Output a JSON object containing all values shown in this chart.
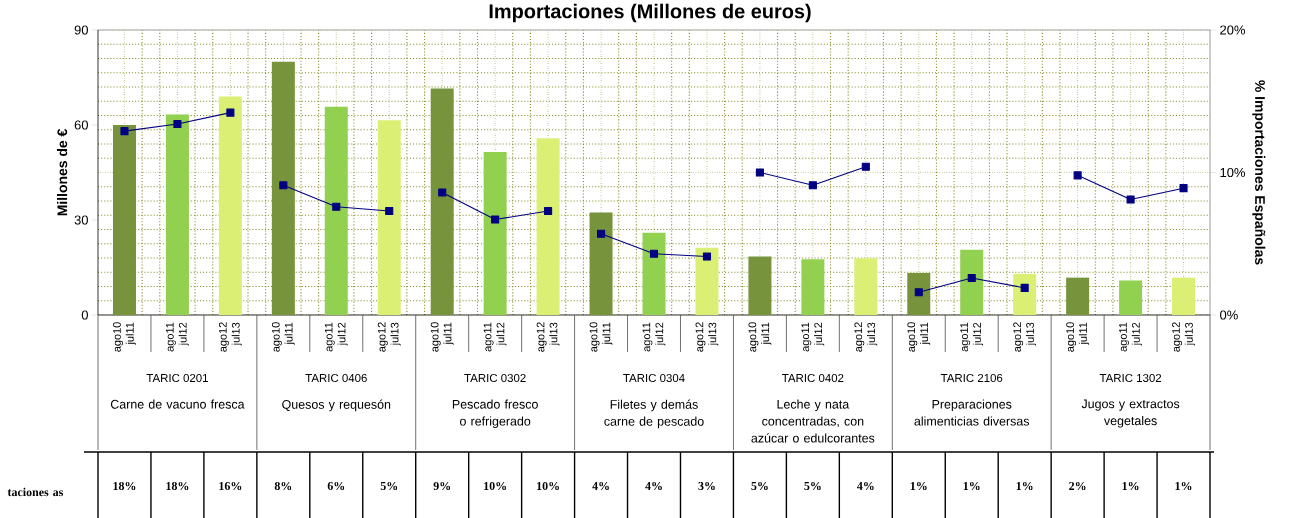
{
  "chart_data": {
    "type": "bar",
    "title": "Importaciones (Millones de euros)",
    "ylabel": "Millones de €",
    "y2label": "% Importaciones Españolas",
    "categories": [
      "ago10 jul11",
      "ago11 jul12",
      "ago12 jul13",
      "ago10 jul11",
      "ago11 jul12",
      "ago12 jul13",
      "ago10 jul11",
      "ago11 jul12",
      "ago12 jul13",
      "ago10 jul11",
      "ago11 jul12",
      "ago12 jul13",
      "ago10 jul11",
      "ago11 jul12",
      "ago12 jul13",
      "ago10 jul11",
      "ago11 jul12",
      "ago12 jul13",
      "ago10 jul11",
      "ago11 jul12",
      "ago12 jul13"
    ],
    "series": [
      {
        "colors": [
          "#77933c",
          "#92d050",
          "#dbef74",
          "#77933c",
          "#92d050",
          "#dbef74",
          "#77933c",
          "#92d050",
          "#dbef74",
          "#77933c",
          "#92d050",
          "#dbef74",
          "#77933c",
          "#92d050",
          "#dbef74",
          "#77933c",
          "#92d050",
          "#dbef74",
          "#77933c",
          "#92d050",
          "#dbef74"
        ],
        "values": [
          60,
          63.3,
          69,
          80,
          65.8,
          61.5,
          71.5,
          51.5,
          55.8,
          32.4,
          26,
          21.2,
          18.5,
          17.6,
          17.9,
          13.3,
          20.6,
          13,
          11.8,
          10.9,
          11.8
        ]
      },
      {
        "type": "line",
        "axis": "y2",
        "color": "#000080",
        "values": [
          12.9,
          13.4,
          14.2,
          null,
          null,
          null,
          null,
          null,
          null,
          null,
          null,
          null,
          null,
          null,
          null,
          null,
          null,
          null,
          null,
          null,
          null
        ]
      },
      {
        "type": "line",
        "axis": "y2",
        "color": "#000080",
        "values": [
          null,
          null,
          null,
          9.1,
          7.6,
          7.3,
          null,
          null,
          null,
          null,
          null,
          null,
          null,
          null,
          null,
          null,
          null,
          null,
          null,
          null,
          null
        ]
      },
      {
        "type": "line",
        "axis": "y2",
        "color": "#000080",
        "values": [
          null,
          null,
          null,
          null,
          null,
          null,
          8.6,
          6.7,
          7.3,
          null,
          null,
          null,
          null,
          null,
          null,
          null,
          null,
          null,
          null,
          null,
          null
        ]
      },
      {
        "type": "line",
        "axis": "y2",
        "color": "#000080",
        "values": [
          null,
          null,
          null,
          null,
          null,
          null,
          null,
          null,
          null,
          5.7,
          4.3,
          4.1,
          null,
          null,
          null,
          null,
          null,
          null,
          null,
          null,
          null
        ]
      },
      {
        "type": "line",
        "axis": "y2",
        "color": "#000080",
        "values": [
          null,
          null,
          null,
          null,
          null,
          null,
          null,
          null,
          null,
          null,
          null,
          null,
          10.0,
          9.1,
          10.4,
          null,
          null,
          null,
          null,
          null,
          null
        ]
      },
      {
        "type": "line",
        "axis": "y2",
        "color": "#000080",
        "values": [
          null,
          null,
          null,
          null,
          null,
          null,
          null,
          null,
          null,
          null,
          null,
          null,
          null,
          null,
          null,
          1.6,
          2.6,
          1.9,
          null,
          null,
          null
        ]
      },
      {
        "type": "line",
        "axis": "y2",
        "color": "#000080",
        "values": [
          null,
          null,
          null,
          null,
          null,
          null,
          null,
          null,
          null,
          null,
          null,
          null,
          null,
          null,
          null,
          null,
          null,
          null,
          9.8,
          8.1,
          8.9
        ]
      }
    ],
    "ylim": [
      0,
      90
    ],
    "yticks": [
      0,
      30,
      60,
      90
    ],
    "y2lim": [
      0,
      20
    ],
    "y2ticks": [
      {
        "value": 0,
        "label": "0%"
      },
      {
        "value": 10,
        "label": "10%"
      },
      {
        "value": 20,
        "label": "20%"
      }
    ],
    "grid": true,
    "marker": "square",
    "line_style": "solid",
    "annotations": [
      "taciones as",
      "TARIC 0201",
      "TARIC 0406",
      "TARIC 0302",
      "TARIC 0304",
      "TARIC 0402",
      "TARIC 2106",
      "TARIC 1302",
      "Carne de vacuno fresca",
      "Quesos y requesón",
      "Pescado fresco o refrigerado",
      "Filetes y demás carne de pescado",
      "Leche y nata concentradas, con azúcar o edulcorantes",
      "Preparaciones alimenticias diversas",
      "Jugos y extractos vegetales",
      "18%",
      "18%",
      "16%",
      "8%",
      "6%",
      "5%",
      "9%",
      "10%",
      "10%",
      "4%",
      "4%",
      "3%",
      "5%",
      "5%",
      "4%",
      "1%",
      "1%",
      "1%",
      "2%",
      "1%",
      "1%"
    ]
  }
}
